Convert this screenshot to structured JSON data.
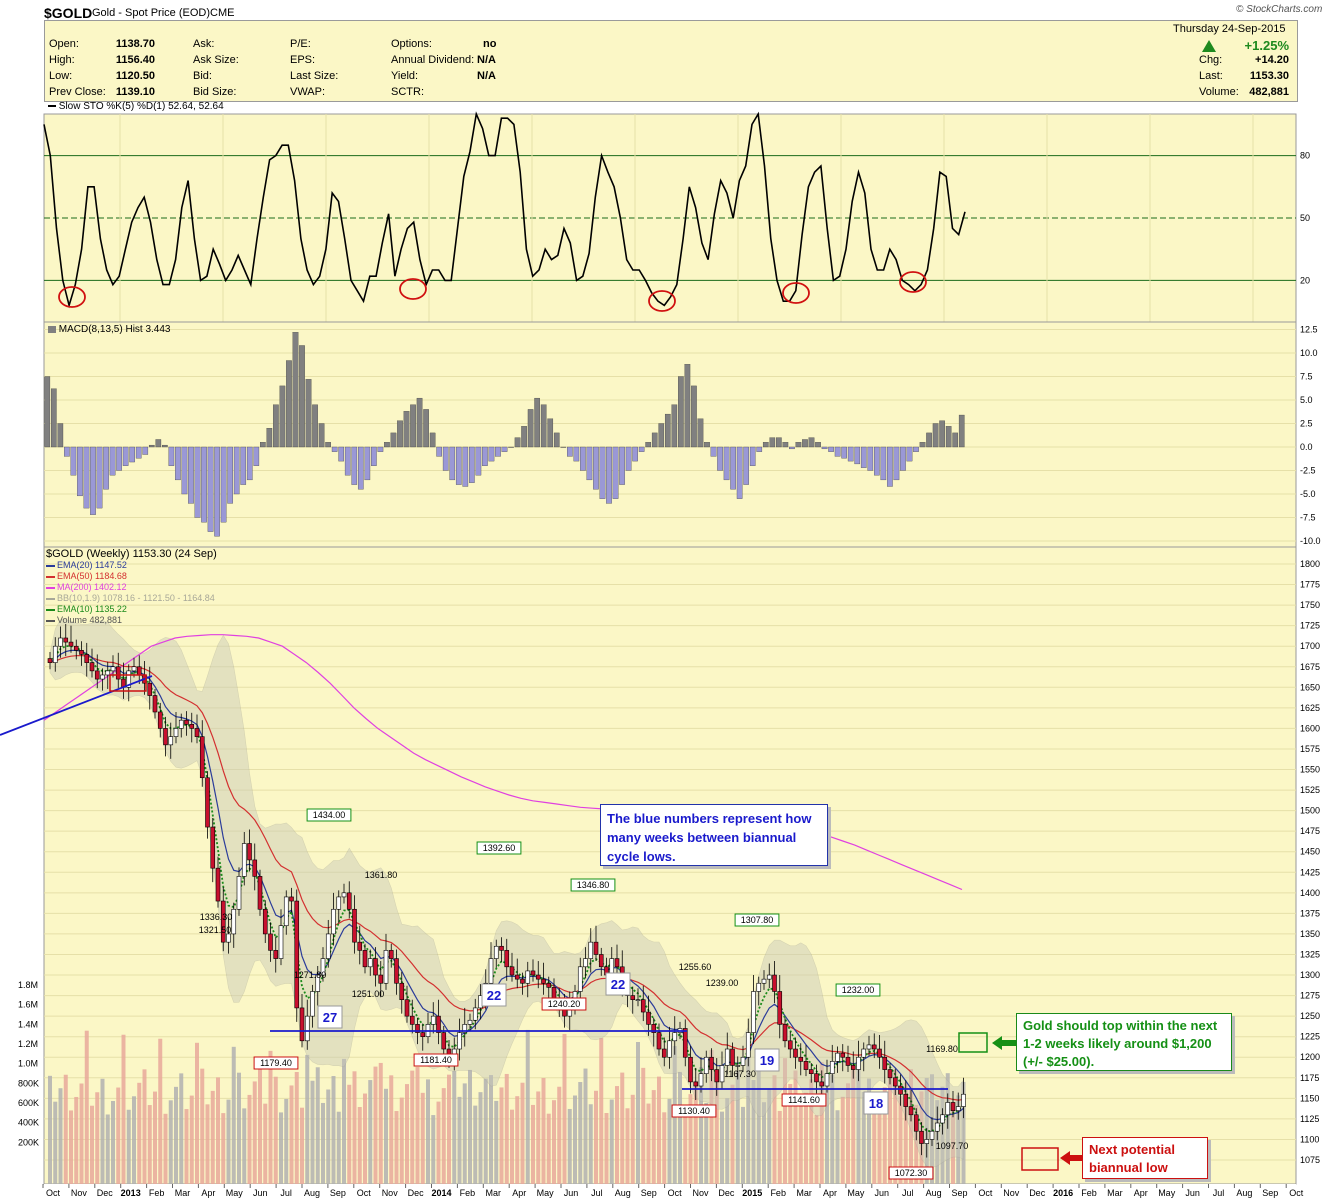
{
  "header": {
    "symbol": "$GOLD",
    "name": "Gold - Spot Price (EOD)",
    "exchange": "CME",
    "brand": "© StockCharts.com",
    "date": "Thursday  24-Sep-2015",
    "change_pct": "+1.25%",
    "quote_left": [
      {
        "label": "Open:",
        "value": "1138.70"
      },
      {
        "label": "High:",
        "value": "1156.40"
      },
      {
        "label": "Low:",
        "value": "1120.50"
      },
      {
        "label": "Prev Close:",
        "value": "1139.10"
      }
    ],
    "quote_mid": [
      "Ask:",
      "Ask Size:",
      "Bid:",
      "Bid Size:"
    ],
    "quote_mid2": [
      "P/E:",
      "EPS:",
      "Last Size:",
      "VWAP:"
    ],
    "quote_opts": [
      {
        "label": "Options:",
        "value": "no"
      },
      {
        "label": "Annual Dividend:",
        "value": "N/A"
      },
      {
        "label": "Yield:",
        "value": "N/A"
      },
      {
        "label": "SCTR:",
        "value": ""
      }
    ],
    "quote_right": [
      {
        "label": "Chg:",
        "value": "+14.20"
      },
      {
        "label": "Last:",
        "value": "1153.30"
      },
      {
        "label": "Volume:",
        "value": "482,881"
      }
    ]
  },
  "colors": {
    "panel_bg": "#fbf7c6",
    "up_candle": "#ffffff",
    "down_candle": "#c8102e",
    "ema20": "#2a3b9a",
    "ema50": "#d33030",
    "ma200": "#e040e0",
    "ema10": "#1a8a1a",
    "bollinger": "#c8c8b8",
    "macd_pos": "#808080",
    "macd_neg": "#9a98d6",
    "volume_up": "#b0b0b0",
    "volume_down": "#e8a89a",
    "annotation_blue": "#1a1acc",
    "annotation_green": "#159015",
    "annotation_red": "#cc1010"
  },
  "chart_data": [
    {
      "type": "line",
      "panel": "stochastic",
      "title": "Slow STO %K(5) %D(1) 52.64, 52.64",
      "ylim": [
        0,
        100
      ],
      "y_ticks": [
        "80",
        "50",
        "20"
      ],
      "reference_lines": [
        80,
        50,
        20
      ],
      "values": [
        95,
        80,
        45,
        20,
        8,
        18,
        35,
        65,
        65,
        40,
        25,
        18,
        22,
        35,
        48,
        55,
        60,
        48,
        30,
        18,
        18,
        30,
        55,
        68,
        40,
        20,
        22,
        35,
        28,
        20,
        25,
        32,
        25,
        18,
        40,
        60,
        78,
        80,
        85,
        85,
        68,
        40,
        25,
        18,
        22,
        35,
        62,
        58,
        40,
        20,
        15,
        10,
        22,
        22,
        38,
        52,
        22,
        35,
        45,
        48,
        30,
        18,
        25,
        25,
        20,
        20,
        45,
        70,
        82,
        100,
        93,
        80,
        80,
        98,
        98,
        95,
        72,
        35,
        22,
        25,
        35,
        30,
        32,
        45,
        38,
        20,
        22,
        33,
        60,
        80,
        72,
        65,
        50,
        30,
        25,
        25,
        20,
        14,
        10,
        8,
        12,
        18,
        40,
        65,
        55,
        38,
        30,
        52,
        68,
        62,
        50,
        68,
        75,
        95,
        100,
        75,
        40,
        20,
        10,
        10,
        15,
        42,
        65,
        72,
        75,
        45,
        20,
        22,
        35,
        58,
        72,
        62,
        35,
        25,
        25,
        35,
        30,
        20,
        18,
        15,
        18,
        25,
        45,
        72,
        70,
        45,
        42,
        53
      ],
      "annotations": [
        "cycle-low circle",
        "cycle-low circle",
        "cycle-low circle",
        "cycle-low circle",
        "cycle-low circle"
      ]
    },
    {
      "type": "bar",
      "panel": "macd",
      "title": "MACD(8,13,5) Hist 3.443",
      "ylim": [
        -10,
        12.5
      ],
      "y_ticks": [
        "12.5",
        "10.0",
        "7.5",
        "5.0",
        "2.5",
        "0.0",
        "-2.5",
        "-5.0",
        "-7.5",
        "-10.0"
      ],
      "values": [
        7.5,
        6.2,
        2.5,
        -1,
        -3,
        -5.2,
        -6.5,
        -7.2,
        -6.5,
        -4.5,
        -3,
        -2.5,
        -2,
        -1.6,
        -1.2,
        -0.8,
        0.2,
        0.8,
        0.2,
        -2,
        -3.5,
        -5,
        -6,
        -7.5,
        -8,
        -9,
        -9.5,
        -8,
        -6,
        -5,
        -4,
        -3.5,
        -2,
        0.5,
        2,
        4.5,
        6.5,
        9.2,
        12.2,
        10.8,
        7.2,
        4.5,
        2.5,
        0.5,
        -0.5,
        -1.5,
        -3,
        -4,
        -4.5,
        -3.5,
        -2,
        -0.5,
        0.5,
        1.5,
        2.8,
        3.8,
        4.5,
        5.2,
        4,
        1.5,
        -1,
        -2.5,
        -3.5,
        -4,
        -4.2,
        -3.8,
        -3,
        -2,
        -1.5,
        -1,
        -0.5,
        0,
        1,
        2.2,
        4,
        5.2,
        4.5,
        3,
        1.5,
        0,
        -1,
        -1.5,
        -2.5,
        -3.5,
        -4.5,
        -5.5,
        -6,
        -5.5,
        -4,
        -2.5,
        -1.5,
        -0.5,
        0.5,
        1.5,
        2.5,
        3.5,
        4.5,
        7.5,
        8.8,
        6.5,
        3,
        0.5,
        -1,
        -2.5,
        -3.5,
        -4.5,
        -5.5,
        -4,
        -2,
        -0.5,
        0.5,
        1,
        1,
        0.5,
        -0.2,
        0.5,
        0.8,
        1,
        0.5,
        -0.2,
        -0.5,
        -1,
        -1.2,
        -1.5,
        -1.8,
        -2.2,
        -2.5,
        -3,
        -3.5,
        -4.2,
        -3.5,
        -2.5,
        -1.5,
        -0.5,
        0.5,
        1.5,
        2.5,
        2.8,
        2.2,
        1.5,
        3.4
      ],
      "series_colors": [
        "macd_pos",
        "macd_neg"
      ]
    },
    {
      "type": "candlestick",
      "panel": "price",
      "title": "$GOLD (Weekly) 1153.30 (24 Sep)",
      "legend": [
        {
          "name": "EMA(20) 1147.52",
          "color": "#2a3b9a"
        },
        {
          "name": "EMA(50) 1184.68",
          "color": "#d33030"
        },
        {
          "name": "MA(200) 1402.12",
          "color": "#e040e0"
        },
        {
          "name": "BB(10,1.9) 1078.16 - 1121.50 - 1164.84",
          "color": "#a8a898"
        },
        {
          "name": "EMA(10) 1135.22",
          "color": "#1a8a1a"
        },
        {
          "name": "Volume 482,881",
          "color": "#555555"
        }
      ],
      "ylim": [
        1060,
        1810
      ],
      "y_ticks": [
        "1800",
        "1775",
        "1750",
        "1725",
        "1700",
        "1675",
        "1650",
        "1625",
        "1600",
        "1575",
        "1550",
        "1525",
        "1500",
        "1475",
        "1450",
        "1425",
        "1400",
        "1375",
        "1350",
        "1325",
        "1300",
        "1275",
        "1250",
        "1225",
        "1200",
        "1175",
        "1150",
        "1125",
        "1100",
        "1075"
      ],
      "volume_ticks": [
        "1.8M",
        "1.6M",
        "1.4M",
        "1.2M",
        "1.0M",
        "800K",
        "600K",
        "400K",
        "200K"
      ],
      "close": [
        1680,
        1700,
        1710,
        1705,
        1700,
        1695,
        1690,
        1680,
        1670,
        1660,
        1665,
        1670,
        1675,
        1660,
        1650,
        1670,
        1675,
        1665,
        1655,
        1640,
        1620,
        1600,
        1580,
        1590,
        1600,
        1610,
        1605,
        1600,
        1590,
        1540,
        1480,
        1430,
        1390,
        1340,
        1350,
        1380,
        1420,
        1460,
        1440,
        1420,
        1380,
        1350,
        1330,
        1320,
        1360,
        1395,
        1390,
        1260,
        1220,
        1250,
        1280,
        1300,
        1320,
        1350,
        1380,
        1395,
        1400,
        1380,
        1340,
        1330,
        1310,
        1320,
        1300,
        1290,
        1330,
        1320,
        1290,
        1270,
        1250,
        1240,
        1230,
        1225,
        1240,
        1250,
        1230,
        1210,
        1195,
        1210,
        1230,
        1240,
        1245,
        1260,
        1275,
        1290,
        1320,
        1335,
        1330,
        1310,
        1300,
        1295,
        1290,
        1305,
        1300,
        1295,
        1290,
        1285,
        1270,
        1260,
        1250,
        1260,
        1280,
        1310,
        1320,
        1340,
        1325,
        1310,
        1300,
        1320,
        1310,
        1285,
        1275,
        1270,
        1270,
        1255,
        1240,
        1230,
        1210,
        1200,
        1220,
        1230,
        1235,
        1200,
        1170,
        1165,
        1180,
        1200,
        1185,
        1170,
        1190,
        1210,
        1190,
        1190,
        1200,
        1230,
        1280,
        1290,
        1295,
        1300,
        1280,
        1240,
        1220,
        1210,
        1200,
        1195,
        1185,
        1180,
        1170,
        1165,
        1180,
        1195,
        1205,
        1200,
        1190,
        1185,
        1200,
        1210,
        1215,
        1210,
        1200,
        1185,
        1175,
        1165,
        1155,
        1140,
        1130,
        1110,
        1095,
        1100,
        1110,
        1120,
        1130,
        1145,
        1135,
        1140,
        1155
      ],
      "ma200": [
        1610,
        1620,
        1630,
        1640,
        1650,
        1660,
        1670,
        1680,
        1690,
        1700,
        1705,
        1710,
        1712,
        1713,
        1714,
        1714,
        1713,
        1712,
        1710,
        1705,
        1700,
        1690,
        1680,
        1668,
        1655,
        1640,
        1625,
        1612,
        1600,
        1590,
        1580,
        1570,
        1562,
        1555,
        1548,
        1541,
        1535,
        1529,
        1524,
        1519,
        1515,
        1512,
        1510,
        1508,
        1506,
        1504,
        1503,
        1502,
        1502,
        1501,
        1501,
        1501,
        1500,
        1500,
        1499,
        1498,
        1497,
        1496,
        1494,
        1492,
        1490,
        1487,
        1484,
        1480,
        1476,
        1472,
        1468,
        1463,
        1458,
        1452,
        1446,
        1440,
        1434,
        1428,
        1422,
        1416,
        1410,
        1404
      ],
      "price_labels": [
        "1434.00",
        "1392.60",
        "1346.80",
        "1361.80",
        "1336.30",
        "1321.50",
        "1271.80",
        "1251.00",
        "1240.20",
        "1255.60",
        "1307.80",
        "1239.00",
        "1167.30",
        "1232.00",
        "1169.80",
        "1097.70",
        "1179.40",
        "1181.40",
        "1130.40",
        "1141.60",
        "1072.30"
      ],
      "cycle_counts": [
        "27",
        "22",
        "22",
        "19",
        "18"
      ],
      "notes": [
        "The blue numbers represent how many weeks between biannual cycle lows.",
        "Gold should top within the next 1-2 weeks likely around $1,200 (+/- $25.00).",
        "Next potential biannual low"
      ],
      "x_tick_labels": [
        "Oct",
        "Nov",
        "Dec",
        "2013",
        "Feb",
        "Mar",
        "Apr",
        "May",
        "Jun",
        "Jul",
        "Aug",
        "Sep",
        "Oct",
        "Nov",
        "Dec",
        "2014",
        "Feb",
        "Mar",
        "Apr",
        "May",
        "Jun",
        "Jul",
        "Aug",
        "Sep",
        "Oct",
        "Nov",
        "Dec",
        "2015",
        "Feb",
        "Mar",
        "Apr",
        "May",
        "Jun",
        "Jul",
        "Aug",
        "Sep",
        "Oct",
        "Nov",
        "Dec",
        "2016",
        "Feb",
        "Mar",
        "Apr",
        "May",
        "Jun",
        "Jul",
        "Aug",
        "Sep",
        "Oct"
      ]
    }
  ]
}
